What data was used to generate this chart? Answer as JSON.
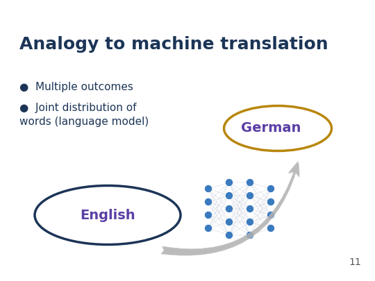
{
  "title": "Analogy to machine translation",
  "title_color": "#1c3557",
  "title_fontsize": 18,
  "title_fontweight": "bold",
  "bullet1": "Multiple outcomes",
  "bullet2": "Joint distribution of\nwords (language model)",
  "bullet_color": "#1c3557",
  "bullet_fontsize": 11,
  "english_label": "English",
  "german_label": "German",
  "english_ellipse_color": "#1c3557",
  "german_ellipse_color": "#b8860b",
  "label_text_color": "#5b3ea6",
  "label_fontsize": 14,
  "label_fontweight": "bold",
  "page_num": "11",
  "bg_color": "#ffffff",
  "slide_bg": "#ffffff",
  "arrow_color": "#b0b0b0",
  "network_node_color": "#3a7abf",
  "network_line_color": "#c0c8d8"
}
